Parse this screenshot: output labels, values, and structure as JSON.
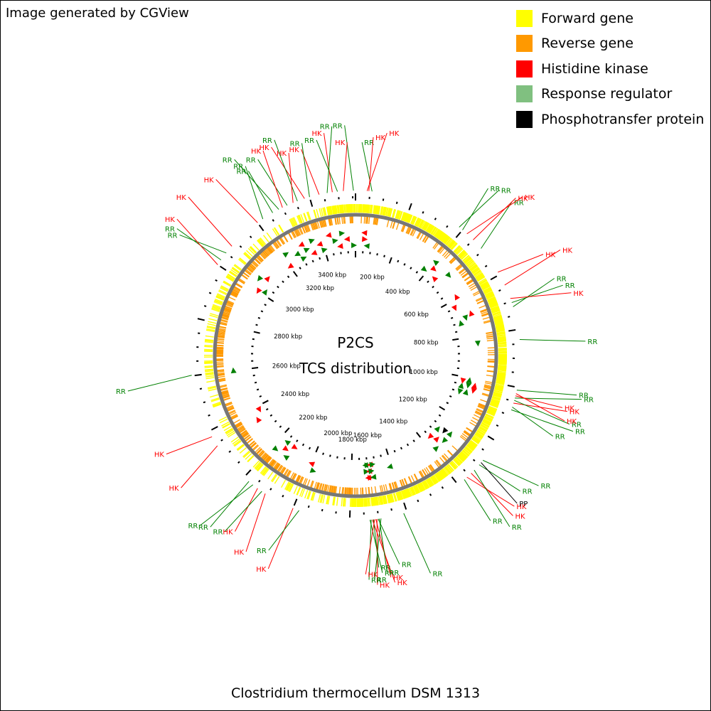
{
  "header": {
    "credit": "Image generated by CGView"
  },
  "legend": [
    {
      "label": "Forward gene",
      "color": "#ffff00"
    },
    {
      "label": "Reverse gene",
      "color": "#ff9900"
    },
    {
      "label": "Histidine kinase",
      "color": "#ff0000"
    },
    {
      "label": "Response regulator",
      "color": "#80c080"
    },
    {
      "label": "Phosphotransfer protein",
      "color": "#000000"
    }
  ],
  "map": {
    "title_line1": "P2CS",
    "title_line2": "TCS distribution",
    "organism": "Clostridium thermocellum DSM 1313",
    "genome_length_kbp": 3560,
    "tick_labels": [
      {
        "kbp": 200,
        "text": "200 kbp"
      },
      {
        "kbp": 400,
        "text": "400 kbp"
      },
      {
        "kbp": 600,
        "text": "600 kbp"
      },
      {
        "kbp": 800,
        "text": "800 kbp"
      },
      {
        "kbp": 1000,
        "text": "1000 kbp"
      },
      {
        "kbp": 1200,
        "text": "1200 kbp"
      },
      {
        "kbp": 1400,
        "text": "1400 kbp"
      },
      {
        "kbp": 1600,
        "text": "1600 kbp"
      },
      {
        "kbp": 1800,
        "text": "1800 kbp"
      },
      {
        "kbp": 2000,
        "text": "2000 kbp"
      },
      {
        "kbp": 2200,
        "text": "2200 kbp"
      },
      {
        "kbp": 2400,
        "text": "2400 kbp"
      },
      {
        "kbp": 2600,
        "text": "2600 kbp"
      },
      {
        "kbp": 2800,
        "text": "2800 kbp"
      },
      {
        "kbp": 3000,
        "text": "3000 kbp"
      },
      {
        "kbp": 3200,
        "text": "3200 kbp"
      },
      {
        "kbp": 3400,
        "text": "3400 kbp"
      }
    ],
    "features": [
      {
        "type": "RR",
        "kbp": 57
      },
      {
        "type": "HK",
        "kbp": 46
      },
      {
        "type": "HK",
        "kbp": 40
      },
      {
        "type": "RR",
        "kbp": 3553
      },
      {
        "type": "HK",
        "kbp": 3518
      },
      {
        "type": "RR",
        "kbp": 3498
      },
      {
        "type": "HK",
        "kbp": 3480
      },
      {
        "type": "RR",
        "kbp": 3462
      },
      {
        "type": "HK",
        "kbp": 3434
      },
      {
        "type": "RR",
        "kbp": 3400
      },
      {
        "type": "HK",
        "kbp": 3382
      },
      {
        "type": "RR",
        "kbp": 3356
      },
      {
        "type": "HK",
        "kbp": 3340
      },
      {
        "type": "RR",
        "kbp": 3318
      },
      {
        "type": "HK",
        "kbp": 3300
      },
      {
        "type": "RR",
        "kbp": 3286
      },
      {
        "type": "RR",
        "kbp": 3262
      },
      {
        "type": "RR",
        "kbp": 3222
      },
      {
        "type": "HK",
        "kbp": 3200
      },
      {
        "type": "HK",
        "kbp": 3080
      },
      {
        "type": "RR",
        "kbp": 3050
      },
      {
        "type": "RR",
        "kbp": 3020
      },
      {
        "type": "HK",
        "kbp": 3000
      },
      {
        "type": "RR",
        "kbp": 2602
      },
      {
        "type": "HK",
        "kbp": 2378
      },
      {
        "type": "HK",
        "kbp": 2342
      },
      {
        "type": "RR",
        "kbp": 2178
      },
      {
        "type": "RR",
        "kbp": 2160
      },
      {
        "type": "HK",
        "kbp": 2140
      },
      {
        "type": "RR",
        "kbp": 2122
      },
      {
        "type": "HK",
        "kbp": 2108
      },
      {
        "type": "HK",
        "kbp": 2000
      },
      {
        "type": "RR",
        "kbp": 1978
      },
      {
        "type": "RR",
        "kbp": 1730
      },
      {
        "type": "RR",
        "kbp": 1726
      },
      {
        "type": "HK",
        "kbp": 1722
      },
      {
        "type": "RR",
        "kbp": 1718
      },
      {
        "type": "HK",
        "kbp": 1714
      },
      {
        "type": "HK",
        "kbp": 1710
      },
      {
        "type": "HK",
        "kbp": 1706
      },
      {
        "type": "RR",
        "kbp": 1702
      },
      {
        "type": "RR",
        "kbp": 1698
      },
      {
        "type": "RR",
        "kbp": 1692
      },
      {
        "type": "RR",
        "kbp": 1612
      },
      {
        "type": "RR",
        "kbp": 1372
      },
      {
        "type": "HK",
        "kbp": 1360
      },
      {
        "type": "HK",
        "kbp": 1340
      },
      {
        "type": "RR",
        "kbp": 1325
      },
      {
        "type": "RR",
        "kbp": 1300
      },
      {
        "type": "PP",
        "kbp": 1290
      },
      {
        "type": "RR",
        "kbp": 1280
      },
      {
        "type": "RR",
        "kbp": 1080
      },
      {
        "type": "RR",
        "kbp": 1070
      },
      {
        "type": "HK",
        "kbp": 1056
      },
      {
        "type": "RR",
        "kbp": 1046
      },
      {
        "type": "RR",
        "kbp": 1038
      },
      {
        "type": "HK",
        "kbp": 1030
      },
      {
        "type": "HK",
        "kbp": 1022
      },
      {
        "type": "RR",
        "kbp": 1010
      },
      {
        "type": "RR",
        "kbp": 835
      },
      {
        "type": "RR",
        "kbp": 720
      },
      {
        "type": "RR",
        "kbp": 705
      },
      {
        "type": "HK",
        "kbp": 690
      },
      {
        "type": "HK",
        "kbp": 640
      },
      {
        "type": "HK",
        "kbp": 590
      },
      {
        "type": "RR",
        "kbp": 490
      },
      {
        "type": "HK",
        "kbp": 450
      },
      {
        "type": "HK",
        "kbp": 420
      },
      {
        "type": "RR",
        "kbp": 400
      },
      {
        "type": "RR",
        "kbp": 385
      }
    ]
  }
}
